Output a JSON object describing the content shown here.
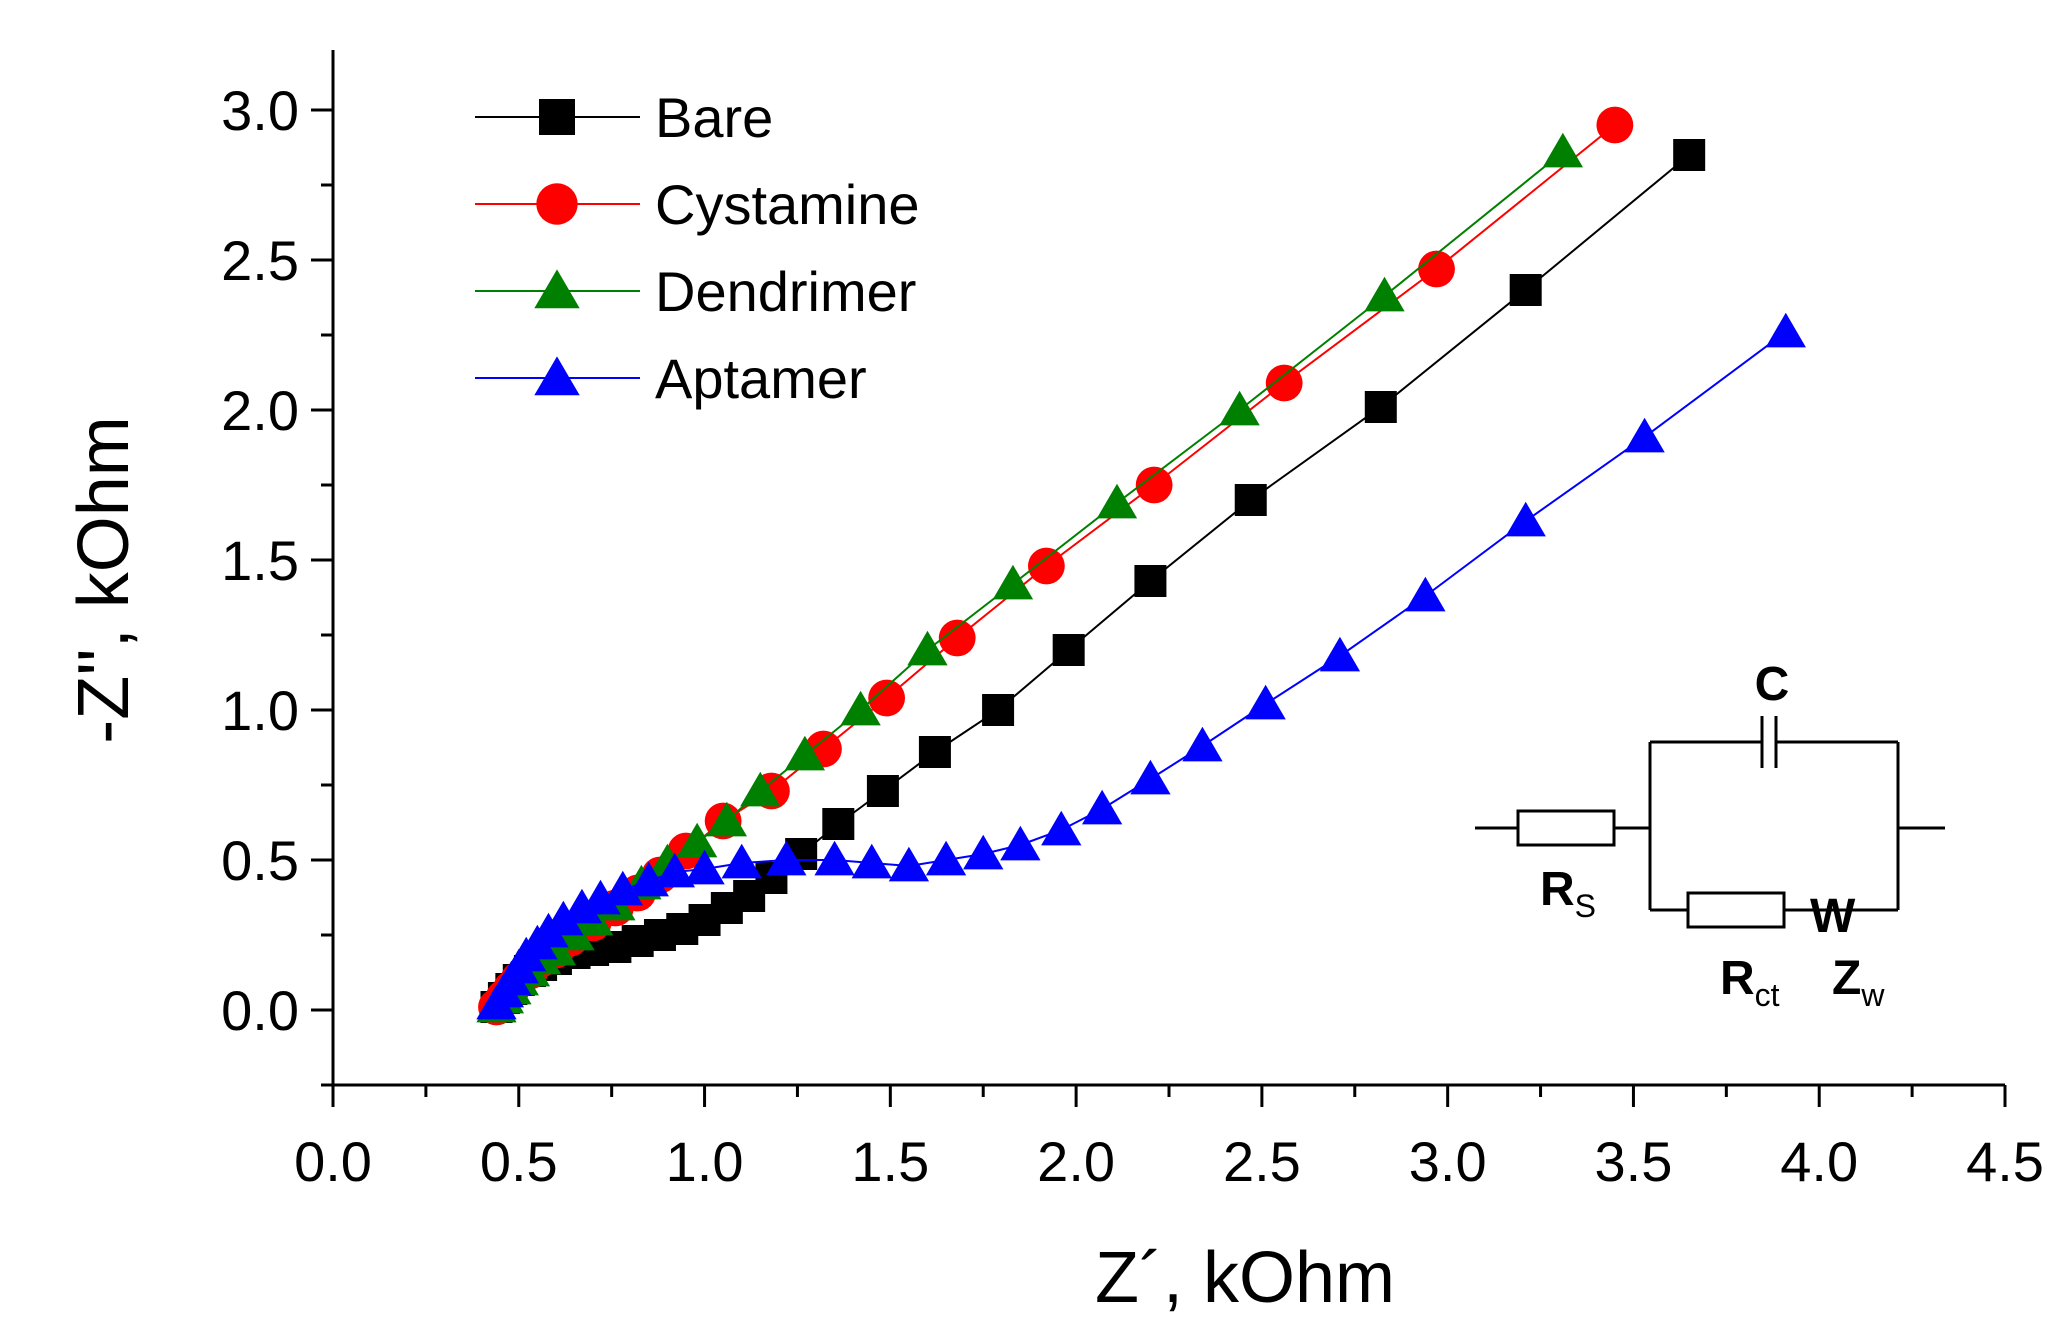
{
  "chart_data": {
    "type": "scatter",
    "xlabel": "Z´, kOhm",
    "ylabel": "-Z'', kOhm",
    "xlim": [
      0,
      4.5
    ],
    "ylim": [
      -0.25,
      3.2
    ],
    "xticks": [
      0.0,
      0.5,
      1.0,
      1.5,
      2.0,
      2.5,
      3.0,
      3.5,
      4.0,
      4.5
    ],
    "xtick_labels": [
      "0.0",
      "0.5",
      "1.0",
      "1.5",
      "2.0",
      "2.5",
      "3.0",
      "3.5",
      "4.0",
      "4.5"
    ],
    "yticks": [
      0.0,
      0.5,
      1.0,
      1.5,
      2.0,
      2.5,
      3.0
    ],
    "ytick_labels": [
      "0.0",
      "0.5",
      "1.0",
      "1.5",
      "2.0",
      "2.5",
      "3.0"
    ],
    "grid": false,
    "legend": "top-left",
    "series": [
      {
        "name": "Bare",
        "color": "#000000",
        "marker": "square",
        "points": [
          [
            0.44,
            0.01
          ],
          [
            0.46,
            0.04
          ],
          [
            0.48,
            0.07
          ],
          [
            0.5,
            0.1
          ],
          [
            0.53,
            0.13
          ],
          [
            0.56,
            0.15
          ],
          [
            0.6,
            0.17
          ],
          [
            0.65,
            0.19
          ],
          [
            0.7,
            0.2
          ],
          [
            0.76,
            0.21
          ],
          [
            0.82,
            0.23
          ],
          [
            0.88,
            0.25
          ],
          [
            0.94,
            0.27
          ],
          [
            1.0,
            0.3
          ],
          [
            1.06,
            0.34
          ],
          [
            1.12,
            0.38
          ],
          [
            1.18,
            0.44
          ],
          [
            1.26,
            0.52
          ],
          [
            1.36,
            0.62
          ],
          [
            1.48,
            0.73
          ],
          [
            1.62,
            0.86
          ],
          [
            1.79,
            1.0
          ],
          [
            1.98,
            1.2
          ],
          [
            2.2,
            1.43
          ],
          [
            2.47,
            1.7
          ],
          [
            2.82,
            2.01
          ],
          [
            3.21,
            2.4
          ],
          [
            3.65,
            2.85
          ]
        ]
      },
      {
        "name": "Cystamine",
        "color": "#ff0000",
        "marker": "circle",
        "points": [
          [
            0.44,
            0.01
          ],
          [
            0.46,
            0.04
          ],
          [
            0.48,
            0.07
          ],
          [
            0.5,
            0.1
          ],
          [
            0.53,
            0.13
          ],
          [
            0.56,
            0.17
          ],
          [
            0.6,
            0.2
          ],
          [
            0.64,
            0.24
          ],
          [
            0.7,
            0.29
          ],
          [
            0.76,
            0.34
          ],
          [
            0.82,
            0.39
          ],
          [
            0.88,
            0.45
          ],
          [
            0.95,
            0.53
          ],
          [
            1.05,
            0.63
          ],
          [
            1.18,
            0.73
          ],
          [
            1.32,
            0.87
          ],
          [
            1.49,
            1.04
          ],
          [
            1.68,
            1.24
          ],
          [
            1.92,
            1.48
          ],
          [
            2.21,
            1.75
          ],
          [
            2.56,
            2.09
          ],
          [
            2.97,
            2.47
          ],
          [
            3.45,
            2.95
          ]
        ]
      },
      {
        "name": "Dendrimer",
        "color": "#008000",
        "marker": "triangle",
        "points": [
          [
            0.44,
            0.01
          ],
          [
            0.46,
            0.04
          ],
          [
            0.48,
            0.07
          ],
          [
            0.5,
            0.1
          ],
          [
            0.53,
            0.13
          ],
          [
            0.56,
            0.17
          ],
          [
            0.6,
            0.2
          ],
          [
            0.65,
            0.25
          ],
          [
            0.7,
            0.3
          ],
          [
            0.76,
            0.35
          ],
          [
            0.83,
            0.42
          ],
          [
            0.9,
            0.49
          ],
          [
            0.98,
            0.56
          ],
          [
            1.06,
            0.63
          ],
          [
            1.15,
            0.73
          ],
          [
            1.27,
            0.85
          ],
          [
            1.42,
            1.0
          ],
          [
            1.6,
            1.2
          ],
          [
            1.83,
            1.42
          ],
          [
            2.11,
            1.69
          ],
          [
            2.44,
            2.0
          ],
          [
            2.83,
            2.38
          ],
          [
            3.31,
            2.86
          ]
        ]
      },
      {
        "name": "Aptamer",
        "color": "#0000ff",
        "marker": "triangle",
        "points": [
          [
            0.44,
            0.02
          ],
          [
            0.46,
            0.06
          ],
          [
            0.48,
            0.1
          ],
          [
            0.5,
            0.14
          ],
          [
            0.52,
            0.18
          ],
          [
            0.55,
            0.22
          ],
          [
            0.58,
            0.26
          ],
          [
            0.62,
            0.3
          ],
          [
            0.67,
            0.34
          ],
          [
            0.72,
            0.37
          ],
          [
            0.78,
            0.4
          ],
          [
            0.85,
            0.43
          ],
          [
            0.92,
            0.46
          ],
          [
            1.0,
            0.47
          ],
          [
            1.1,
            0.49
          ],
          [
            1.22,
            0.5
          ],
          [
            1.35,
            0.5
          ],
          [
            1.45,
            0.49
          ],
          [
            1.55,
            0.48
          ],
          [
            1.65,
            0.5
          ],
          [
            1.75,
            0.52
          ],
          [
            1.85,
            0.55
          ],
          [
            1.96,
            0.6
          ],
          [
            2.07,
            0.67
          ],
          [
            2.2,
            0.77
          ],
          [
            2.34,
            0.88
          ],
          [
            2.51,
            1.02
          ],
          [
            2.71,
            1.18
          ],
          [
            2.94,
            1.38
          ],
          [
            3.21,
            1.63
          ],
          [
            3.53,
            1.91
          ],
          [
            3.91,
            2.26
          ]
        ]
      }
    ],
    "annotations": {
      "capacitor_label": "C",
      "rs_label_main": "R",
      "rs_label_sub": "S",
      "w_label": "W",
      "rct_label_main": "R",
      "rct_label_sub": "ct",
      "zw_label_main": "Z",
      "zw_label_sub": "w"
    }
  }
}
